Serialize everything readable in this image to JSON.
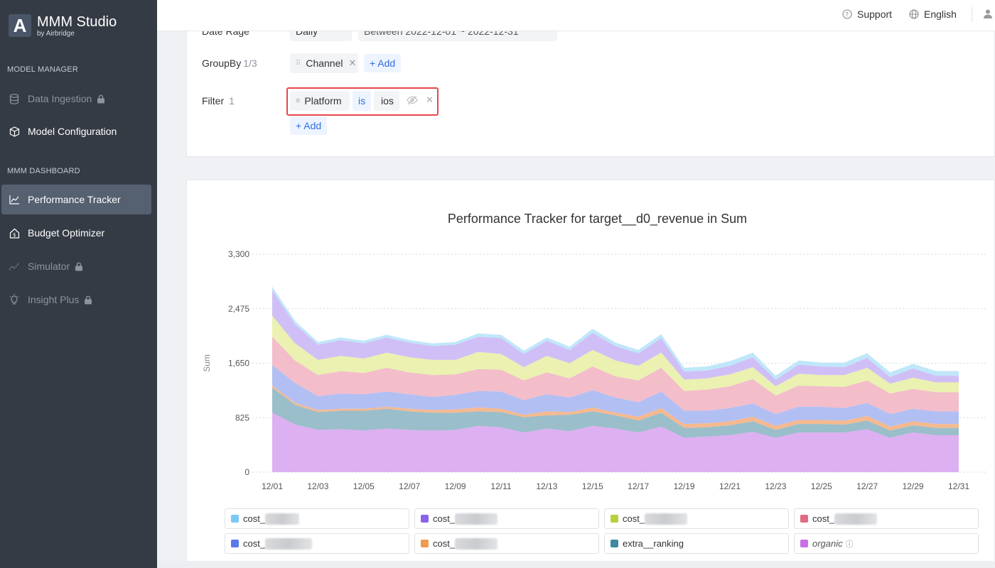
{
  "app": {
    "title": "MMM Studio",
    "subtitle": "by Airbridge",
    "logo_letter": "A"
  },
  "sidebar": {
    "section1": "MODEL MANAGER",
    "section2": "MMM DASHBOARD",
    "items": [
      {
        "label": "Data Ingestion",
        "icon": "database-icon",
        "locked": true
      },
      {
        "label": "Model Configuration",
        "icon": "cube-icon",
        "locked": false
      },
      {
        "label": "Performance Tracker",
        "icon": "line-chart-icon",
        "locked": false,
        "active": true
      },
      {
        "label": "Budget Optimizer",
        "icon": "house-dollar-icon",
        "locked": false
      },
      {
        "label": "Simulator",
        "icon": "trend-icon",
        "locked": true
      },
      {
        "label": "Insight Plus",
        "icon": "lightbulb-icon",
        "locked": true
      }
    ]
  },
  "topbar": {
    "support": "Support",
    "language": "English"
  },
  "filters": {
    "date_label": "Date Rage",
    "date_mode": "Daily",
    "date_range": "Between  2022-12-01 ~ 2022-12-31",
    "groupby_label": "GroupBy",
    "groupby_count": "1/3",
    "groupby_chip": "Channel",
    "add_label": "+ Add",
    "filter_label": "Filter",
    "filter_count": "1",
    "filter_field": "Platform",
    "filter_op": "is",
    "filter_value": "ios"
  },
  "chart_data": {
    "type": "area",
    "title": "Performance Tracker for target__d0_revenue in Sum",
    "ylabel": "Sum",
    "xlabel": "",
    "ylim": [
      0,
      3300
    ],
    "yticks": [
      "3,300",
      "2,475",
      "1,650",
      "825",
      "0"
    ],
    "xticks": [
      "12/01",
      "12/03",
      "12/05",
      "12/07",
      "12/09",
      "12/11",
      "12/13",
      "12/15",
      "12/17",
      "12/19",
      "12/21",
      "12/23",
      "12/25",
      "12/27",
      "12/29",
      "12/31"
    ],
    "x": [
      "12/01",
      "12/02",
      "12/03",
      "12/04",
      "12/05",
      "12/06",
      "12/07",
      "12/08",
      "12/09",
      "12/10",
      "12/11",
      "12/12",
      "12/13",
      "12/14",
      "12/15",
      "12/16",
      "12/17",
      "12/18",
      "12/19",
      "12/20",
      "12/21",
      "12/22",
      "12/23",
      "12/24",
      "12/25",
      "12/26",
      "12/27",
      "12/28",
      "12/29",
      "12/30",
      "12/31"
    ],
    "stacked": true,
    "series": [
      {
        "name": "organic",
        "color": "#d9a7f0",
        "values": [
          900,
          720,
          640,
          650,
          630,
          660,
          640,
          630,
          640,
          700,
          680,
          600,
          660,
          620,
          700,
          660,
          600,
          690,
          520,
          540,
          560,
          610,
          520,
          600,
          600,
          600,
          650,
          520,
          600,
          560,
          560
        ]
      },
      {
        "name": "extra__ranking",
        "color": "#8fb7c4",
        "values": [
          380,
          300,
          270,
          280,
          300,
          300,
          280,
          270,
          260,
          220,
          230,
          230,
          200,
          250,
          220,
          200,
          180,
          210,
          150,
          140,
          150,
          160,
          120,
          130,
          130,
          120,
          130,
          110,
          110,
          110,
          110
        ]
      },
      {
        "name": "cost_6",
        "color": "#f4b183",
        "values": [
          30,
          30,
          30,
          30,
          30,
          30,
          40,
          40,
          50,
          60,
          50,
          40,
          60,
          40,
          60,
          40,
          60,
          70,
          60,
          60,
          60,
          70,
          60,
          60,
          60,
          60,
          70,
          60,
          60,
          60,
          60
        ]
      },
      {
        "name": "cost_5",
        "color": "#aab8f2",
        "values": [
          310,
          300,
          210,
          230,
          220,
          230,
          220,
          200,
          220,
          250,
          260,
          220,
          260,
          220,
          260,
          230,
          220,
          250,
          200,
          190,
          200,
          200,
          180,
          200,
          200,
          190,
          200,
          190,
          190,
          190,
          190
        ]
      },
      {
        "name": "cost_4",
        "color": "#f2b6c4",
        "values": [
          430,
          340,
          320,
          340,
          320,
          360,
          330,
          330,
          310,
          330,
          330,
          300,
          330,
          290,
          360,
          320,
          330,
          360,
          300,
          320,
          330,
          370,
          280,
          320,
          310,
          320,
          340,
          310,
          300,
          290,
          290
        ]
      },
      {
        "name": "cost_3",
        "color": "#e8f0a8",
        "values": [
          320,
          260,
          230,
          230,
          220,
          230,
          230,
          230,
          220,
          260,
          240,
          200,
          250,
          230,
          250,
          240,
          220,
          230,
          170,
          170,
          180,
          180,
          140,
          180,
          170,
          180,
          190,
          150,
          170,
          150,
          150
        ]
      },
      {
        "name": "cost_2",
        "color": "#cbb8f5",
        "values": [
          380,
          290,
          230,
          240,
          230,
          230,
          220,
          210,
          230,
          230,
          240,
          200,
          230,
          200,
          260,
          220,
          190,
          220,
          120,
          120,
          130,
          150,
          100,
          140,
          130,
          120,
          150,
          100,
          140,
          100,
          100
        ]
      },
      {
        "name": "cost_1",
        "color": "#b8e4f8",
        "values": [
          60,
          50,
          40,
          40,
          40,
          40,
          40,
          40,
          40,
          50,
          50,
          50,
          50,
          50,
          60,
          50,
          50,
          60,
          60,
          60,
          70,
          70,
          60,
          60,
          60,
          70,
          70,
          70,
          70,
          70,
          70
        ]
      }
    ]
  },
  "legend": [
    {
      "label": "cost_",
      "color": "#7cc8f4",
      "blur_w": 48
    },
    {
      "label": "cost_",
      "color": "#8c63e8",
      "blur_w": 60
    },
    {
      "label": "cost_",
      "color": "#b5d13b",
      "blur_w": 60
    },
    {
      "label": "cost_",
      "color": "#e06a82",
      "blur_w": 60
    },
    {
      "label": "cost_",
      "color": "#5a7be6",
      "blur_w": 66
    },
    {
      "label": "cost_",
      "color": "#ef9a4e",
      "blur_w": 60
    },
    {
      "label": "extra__ranking",
      "color": "#3c8aa3"
    },
    {
      "label": "organic",
      "color": "#c86ee6",
      "italic": true,
      "info": "ⓘ"
    }
  ]
}
